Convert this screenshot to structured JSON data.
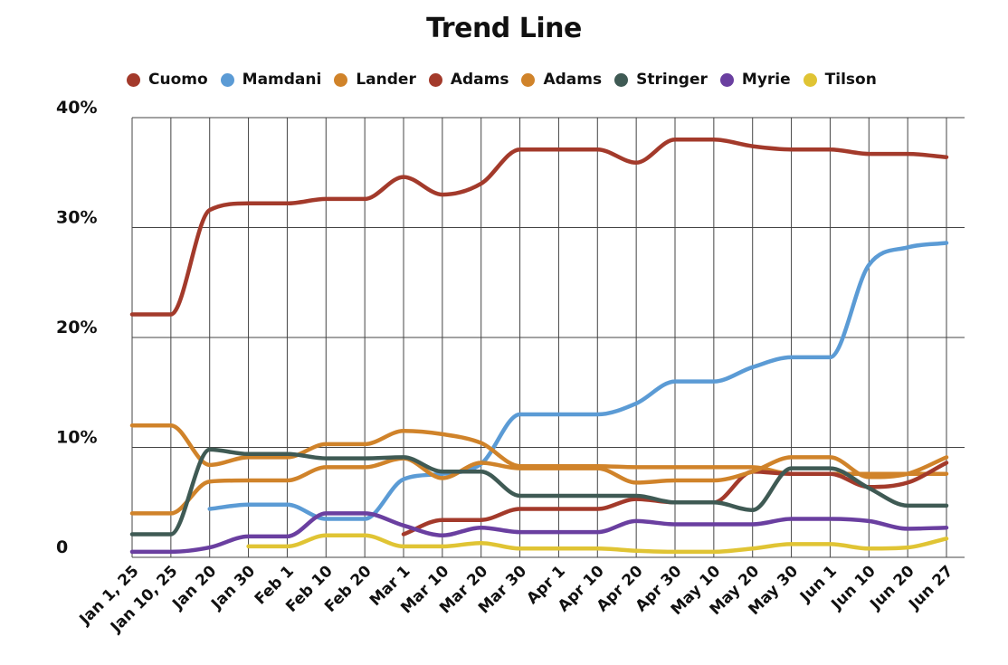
{
  "chart_data": {
    "type": "line",
    "title": "Trend Line",
    "xlabel": "",
    "ylabel": "",
    "ylim": [
      0,
      40
    ],
    "yticks": [
      {
        "value": 0,
        "label": "0"
      },
      {
        "value": 10,
        "label": "10%"
      },
      {
        "value": 20,
        "label": "20%"
      },
      {
        "value": 30,
        "label": "30%"
      },
      {
        "value": 40,
        "label": "40%"
      }
    ],
    "categories": [
      "Jan 1, 25",
      "Jan 10, 25",
      "Jan 20",
      "Jan 30",
      "Feb 1",
      "Feb 10",
      "Feb 20",
      "Mar 1",
      "Mar 10",
      "Mar 20",
      "Mar 30",
      "Apr 1",
      "Apr 10",
      "Apr 20",
      "Apr 30",
      "May 10",
      "May 20",
      "May 30",
      "Jun 1",
      "Jun 10",
      "Jun 20",
      "Jun 27"
    ],
    "grid": true,
    "legend_position": "top",
    "series": [
      {
        "name": "Cuomo",
        "color": "#a33a2b",
        "values": [
          22.1,
          22.1,
          31.6,
          32.2,
          32.2,
          32.6,
          32.6,
          34.6,
          33,
          34,
          37.1,
          37.1,
          37.1,
          35.9,
          38,
          38,
          37.4,
          37.1,
          37.1,
          36.7,
          36.7,
          36.4
        ]
      },
      {
        "name": "Mamdani",
        "color": "#5b9bd5",
        "values": [
          null,
          null,
          4.4,
          4.8,
          4.8,
          3.5,
          3.5,
          7.1,
          7.6,
          8.5,
          13,
          13,
          13,
          14,
          16,
          16,
          17.3,
          18.2,
          18.2,
          26.6,
          28.2,
          28.6
        ]
      },
      {
        "name": "Lander",
        "color": "#d0832a",
        "values": [
          12,
          12,
          8.4,
          9.1,
          9.1,
          10.3,
          10.3,
          11.5,
          11.2,
          10.4,
          8.3,
          8.3,
          8.3,
          8.2,
          8.2,
          8.2,
          8.2,
          7.6,
          7.6,
          7.6,
          7.6,
          7.6
        ]
      },
      {
        "name": "Adams",
        "color": "#a33a2b",
        "values": [
          null,
          null,
          null,
          null,
          null,
          null,
          null,
          2.1,
          3.4,
          3.4,
          4.4,
          4.4,
          4.4,
          5.3,
          5,
          5,
          7.8,
          7.6,
          7.6,
          6.4,
          6.8,
          8.6
        ]
      },
      {
        "name": "Adams",
        "color": "#d0832a",
        "values": [
          4,
          4,
          6.9,
          7,
          7,
          8.2,
          8.2,
          9,
          7.2,
          8.6,
          8.1,
          8.1,
          8.1,
          6.8,
          7,
          7,
          7.8,
          9.1,
          9.1,
          7.3,
          7.6,
          9.1
        ]
      },
      {
        "name": "Stringer",
        "color": "#3f5a54",
        "values": [
          2.1,
          2.1,
          9.8,
          9.4,
          9.4,
          9,
          9,
          9.1,
          7.8,
          7.8,
          5.6,
          5.6,
          5.6,
          5.6,
          5,
          5,
          4.3,
          8.1,
          8.1,
          6.3,
          4.7,
          4.7
        ]
      },
      {
        "name": "Myrie",
        "color": "#6a3fa0",
        "values": [
          0.5,
          0.5,
          0.9,
          1.9,
          1.9,
          4,
          4,
          2.9,
          2,
          2.7,
          2.3,
          2.3,
          2.3,
          3.3,
          3,
          3,
          3,
          3.5,
          3.5,
          3.3,
          2.6,
          2.7
        ]
      },
      {
        "name": "Tilson",
        "color": "#e0c434",
        "values": [
          null,
          null,
          null,
          1,
          1,
          2,
          2,
          1,
          1,
          1.3,
          0.8,
          0.8,
          0.8,
          0.6,
          0.5,
          0.5,
          0.8,
          1.2,
          1.2,
          0.8,
          0.9,
          1.7
        ]
      }
    ]
  }
}
